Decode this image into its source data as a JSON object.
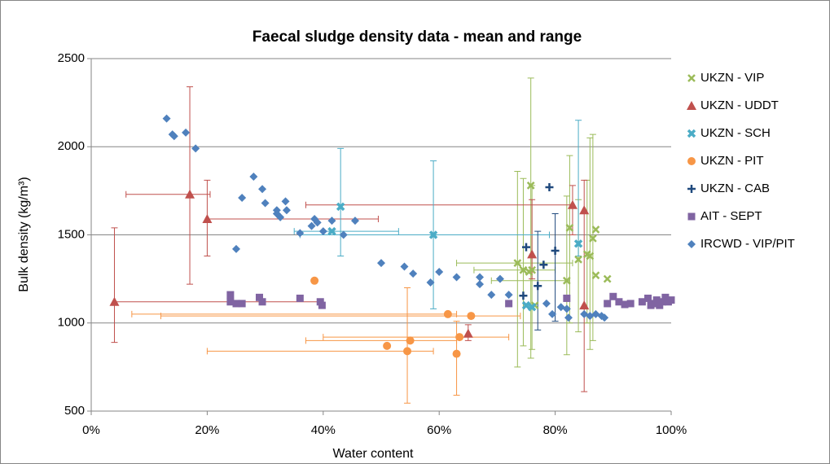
{
  "chart_data": {
    "type": "scatter",
    "title": "Faecal sludge density data - mean and range",
    "x_label": "Water content",
    "y_label": "Bulk density (kg/m³)",
    "xlim": [
      0,
      100
    ],
    "xticks": [
      {
        "value": 0,
        "label": "0%"
      },
      {
        "value": 20,
        "label": "20%"
      },
      {
        "value": 40,
        "label": "40%"
      },
      {
        "value": 60,
        "label": "60%"
      },
      {
        "value": 80,
        "label": "80%"
      },
      {
        "value": 100,
        "label": "100%"
      }
    ],
    "ylim": [
      500,
      2500
    ],
    "yticks": [
      500,
      1000,
      1500,
      2000,
      2500
    ],
    "grid": true,
    "legend": "right",
    "series": [
      {
        "name": "UKZN - VIP",
        "color": "#9bbb59",
        "marker": "x",
        "x": [
          73.5,
          74.5,
          75.8,
          76,
          75.5,
          76.5,
          82,
          82.5,
          84,
          85.5,
          86,
          86.5,
          87,
          87,
          89
        ],
        "values": [
          1340,
          1300,
          1780,
          1300,
          1290,
          1100,
          1240,
          1540,
          1360,
          1390,
          1380,
          1480,
          1530,
          1270,
          1250
        ],
        "y_min": [
          750,
          870,
          800,
          850,
          null,
          null,
          820,
          1000,
          950,
          1000,
          850,
          900,
          null,
          null,
          null
        ],
        "y_max": [
          1860,
          1820,
          2390,
          1780,
          null,
          null,
          1720,
          1950,
          1700,
          1810,
          2050,
          2070,
          null,
          null,
          null
        ],
        "x_min": [
          63,
          66,
          null,
          null,
          null,
          null,
          69,
          null,
          null,
          null,
          null,
          null,
          null,
          null,
          null
        ],
        "x_max": [
          83,
          80,
          null,
          null,
          null,
          null,
          82.5,
          null,
          null,
          null,
          null,
          null,
          null,
          null,
          null
        ]
      },
      {
        "name": "UKZN - UDDT",
        "color": "#c0504d",
        "marker": "triangle",
        "x": [
          4,
          17,
          20,
          65,
          76,
          83,
          85,
          85
        ],
        "values": [
          1120,
          1730,
          1590,
          940,
          1390,
          1670,
          1640,
          1100
        ],
        "y_min": [
          890,
          1220,
          1380,
          900,
          1250,
          1500,
          610,
          null
        ],
        "y_max": [
          1540,
          2340,
          1810,
          990,
          1700,
          1780,
          1810,
          null
        ],
        "x_min": [
          4,
          6,
          20,
          null,
          null,
          37,
          null,
          null
        ],
        "x_max": [
          40,
          20.5,
          49.5,
          null,
          null,
          83,
          null,
          null
        ]
      },
      {
        "name": "UKZN - SCH",
        "color": "#4bacc6",
        "marker": "xbold",
        "x": [
          41.5,
          43,
          59,
          75,
          76,
          84
        ],
        "values": [
          1520,
          1660,
          1500,
          1100,
          1090,
          1450
        ],
        "y_min": [
          null,
          1380,
          1080,
          null,
          null,
          1380
        ],
        "y_max": [
          null,
          1990,
          1920,
          null,
          null,
          2150
        ],
        "x_min": [
          35,
          null,
          36,
          null,
          null,
          null
        ],
        "x_max": [
          53,
          null,
          79,
          null,
          null,
          null
        ]
      },
      {
        "name": "UKZN - PIT",
        "color": "#f79646",
        "marker": "circle",
        "x": [
          38.5,
          51,
          54.5,
          55,
          61.5,
          63,
          63.5,
          65.5
        ],
        "values": [
          1240,
          870,
          840,
          900,
          1050,
          825,
          920,
          1040
        ],
        "y_min": [
          null,
          null,
          545,
          null,
          null,
          590,
          null,
          null
        ],
        "y_max": [
          null,
          null,
          1200,
          null,
          null,
          1010,
          null,
          null
        ],
        "x_min": [
          null,
          null,
          20,
          37,
          7,
          null,
          40,
          12
        ],
        "x_max": [
          null,
          null,
          59,
          63,
          63,
          null,
          72,
          74
        ]
      },
      {
        "name": "UKZN - CAB",
        "color": "#1f497d",
        "marker": "plus",
        "x": [
          74.5,
          75,
          77,
          78,
          79,
          80
        ],
        "values": [
          1155,
          1430,
          1210,
          1330,
          1770,
          1410
        ],
        "y_min": [
          null,
          null,
          960,
          null,
          null,
          1010
        ],
        "y_max": [
          null,
          null,
          1520,
          null,
          null,
          1620
        ]
      },
      {
        "name": "AIT - SEPT",
        "color": "#8064a2",
        "marker": "square",
        "x": [
          24,
          24,
          25,
          26,
          29,
          29.5,
          36,
          39.5,
          39.8,
          72,
          82,
          89,
          90,
          91,
          92,
          93,
          95,
          96,
          96.5,
          97,
          97.5,
          98,
          98.5,
          99,
          99.5,
          100
        ],
        "values": [
          1120,
          1160,
          1110,
          1110,
          1145,
          1120,
          1140,
          1120,
          1100,
          1110,
          1140,
          1110,
          1150,
          1120,
          1105,
          1110,
          1120,
          1140,
          1100,
          1110,
          1130,
          1100,
          1120,
          1145,
          1120,
          1130
        ]
      },
      {
        "name": "IRCWD - VIP/PIT",
        "color": "#4f81bd",
        "marker": "diamond",
        "x": [
          13,
          14,
          14.3,
          16.3,
          18,
          25,
          26,
          28,
          29.5,
          30,
          32,
          32,
          32.6,
          33.5,
          33.7,
          36,
          38,
          38.5,
          39,
          40,
          41.5,
          43.5,
          45.5,
          50,
          54,
          55.5,
          58.5,
          60,
          63,
          67,
          67,
          69,
          70.5,
          72,
          78.5,
          79.5,
          81,
          82,
          82.3,
          85,
          86,
          87,
          88,
          88.5
        ],
        "values": [
          2160,
          2070,
          2060,
          2080,
          1990,
          1420,
          1710,
          1830,
          1760,
          1680,
          1640,
          1620,
          1600,
          1690,
          1640,
          1510,
          1550,
          1590,
          1570,
          1520,
          1580,
          1500,
          1580,
          1340,
          1320,
          1280,
          1230,
          1290,
          1260,
          1220,
          1260,
          1160,
          1250,
          1160,
          1110,
          1050,
          1090,
          1080,
          1030,
          1050,
          1040,
          1050,
          1040,
          1030
        ]
      }
    ]
  }
}
